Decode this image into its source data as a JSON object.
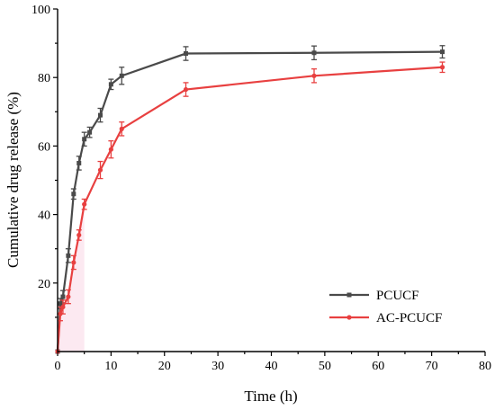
{
  "chart_data": {
    "type": "line",
    "title": "",
    "xlabel": "Time (h)",
    "ylabel": "Cumulative drug release (%)",
    "xlim": [
      0,
      80
    ],
    "ylim": [
      0,
      100
    ],
    "xticks": [
      "0",
      "10",
      "20",
      "30",
      "40",
      "50",
      "60",
      "70",
      "80"
    ],
    "yticks": [
      "20",
      "40",
      "60",
      "80",
      "100"
    ],
    "grid": false,
    "legend_position": "bottom-right",
    "series": [
      {
        "name": "PCUCF",
        "color": "#4a4a4a",
        "marker": "square",
        "x": [
          0,
          0.5,
          1,
          2,
          3,
          4,
          5,
          6,
          8,
          10,
          12,
          24,
          48,
          72
        ],
        "y": [
          0,
          14,
          16,
          28,
          46,
          55,
          62,
          64,
          69,
          78,
          80.5,
          87,
          87.2,
          87.5
        ],
        "error": [
          0,
          1.5,
          1.8,
          2,
          1.5,
          2,
          2,
          1.5,
          2,
          1.5,
          2.5,
          2,
          2,
          1.8
        ]
      },
      {
        "name": "AC-PCUCF",
        "color": "#e84040",
        "marker": "circle",
        "x": [
          0,
          0.5,
          1,
          2,
          3,
          4,
          5,
          8,
          10,
          12,
          24,
          48,
          72
        ],
        "y": [
          0,
          11,
          13,
          16,
          26,
          34,
          43,
          53,
          59,
          65,
          76.5,
          80.5,
          83
        ],
        "error": [
          0,
          2,
          2,
          2,
          2,
          1.5,
          1.5,
          2.5,
          2.5,
          2,
          2,
          2,
          1.5
        ]
      }
    ]
  }
}
